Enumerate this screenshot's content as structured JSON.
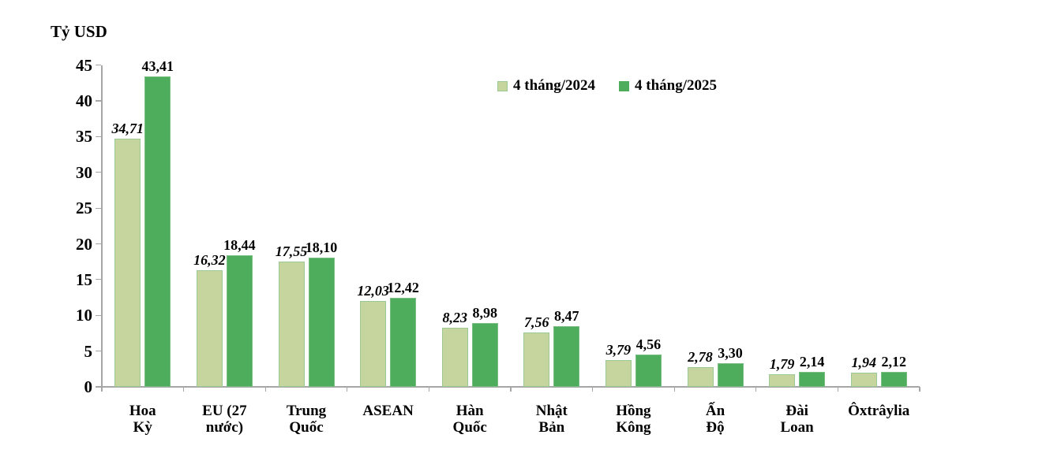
{
  "title": "Tỷ USD",
  "legend": {
    "items": [
      {
        "label": "4 tháng/2024"
      },
      {
        "label": "4 tháng/2025"
      }
    ]
  },
  "colors": {
    "series_2024_fill": "#C6D59D",
    "series_2024_border": "#9CC893",
    "series_2025_fill": "#4EAD5C",
    "series_2025_border": "#79BF82",
    "axis": "#a6a6a6",
    "text": "#000000"
  },
  "chart_data": {
    "type": "bar",
    "title": "",
    "ylabel": "Tỷ USD",
    "xlabel": "",
    "ylim": [
      0,
      45
    ],
    "yticks": [
      0,
      5,
      10,
      15,
      20,
      25,
      30,
      35,
      40,
      45
    ],
    "grid": false,
    "legend_position": "top-center",
    "categories": [
      "Hoa Kỳ",
      "EU (27 nước)",
      "Trung Quốc",
      "ASEAN",
      "Hàn Quốc",
      "Nhật Bản",
      "Hồng Kông",
      "Ấn Độ",
      "Đài Loan",
      "Ôxtrâylia"
    ],
    "category_lines": [
      [
        "Hoa",
        "Kỳ"
      ],
      [
        "EU (27",
        "nước)"
      ],
      [
        "Trung",
        "Quốc"
      ],
      [
        "ASEAN"
      ],
      [
        "Hàn",
        "Quốc"
      ],
      [
        "Nhật",
        "Bản"
      ],
      [
        "Hồng",
        "Kông"
      ],
      [
        "Ấn",
        "Độ"
      ],
      [
        "Đài",
        "Loan"
      ],
      [
        "Ôxtrâylia"
      ]
    ],
    "series": [
      {
        "name": "4 tháng/2024",
        "values": [
          34.71,
          16.32,
          17.55,
          12.03,
          8.23,
          7.56,
          3.79,
          2.78,
          1.79,
          1.94
        ],
        "value_labels": [
          "34,71",
          "16,32",
          "17,55",
          "12,03",
          "8,23",
          "7,56",
          "3,79",
          "2,78",
          "1,79",
          "1,94"
        ],
        "fill": "#C6D59D",
        "border": "#9CC893",
        "label_style": "italic"
      },
      {
        "name": "4 tháng/2025",
        "values": [
          43.41,
          18.44,
          18.1,
          12.42,
          8.98,
          8.47,
          4.56,
          3.3,
          2.14,
          2.12
        ],
        "value_labels": [
          "43,41",
          "18,44",
          "18,10",
          "12,42",
          "8,98",
          "8,47",
          "4,56",
          "3,30",
          "2,14",
          "2,12"
        ],
        "fill": "#4EAD5C",
        "border": "#79BF82",
        "label_style": "normal"
      }
    ]
  }
}
